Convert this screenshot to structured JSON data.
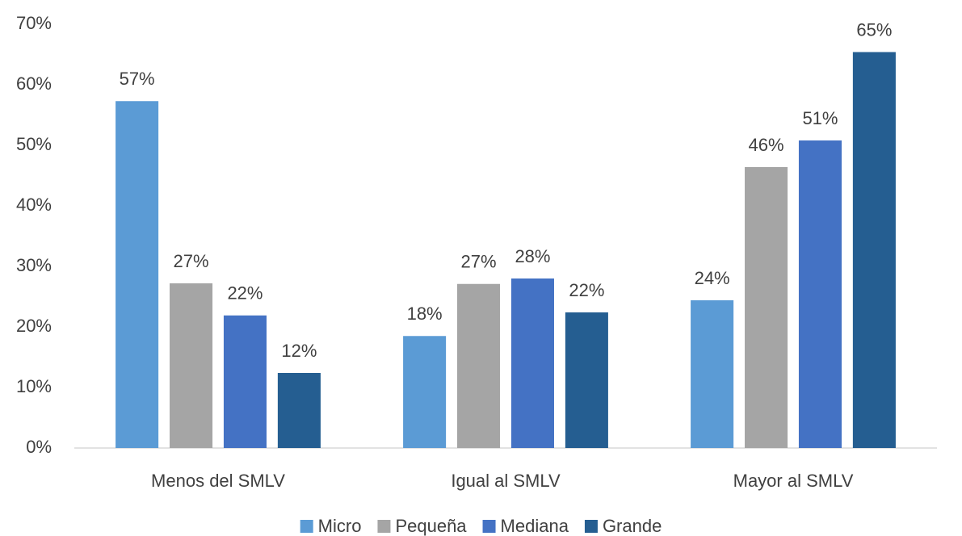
{
  "chart_data": {
    "type": "bar",
    "categories": [
      "Menos del SMLV",
      "Igual al SMLV",
      "Mayor al SMLV"
    ],
    "series": [
      {
        "name": "Micro",
        "color": "#5b9bd5",
        "values": [
          57.3,
          18.5,
          24.4
        ],
        "value_labels": [
          "57%",
          "18%",
          "24%"
        ]
      },
      {
        "name": "Pequeña",
        "color": "#a5a5a5",
        "values": [
          27.2,
          27.1,
          46.4
        ],
        "value_labels": [
          "27%",
          "27%",
          "46%"
        ]
      },
      {
        "name": "Mediana",
        "color": "#4472c4",
        "values": [
          21.9,
          28,
          50.8
        ],
        "value_labels": [
          "22%",
          "28%",
          "51%"
        ]
      },
      {
        "name": "Grande",
        "color": "#255e91",
        "values": [
          12.4,
          22.4,
          65.4
        ],
        "value_labels": [
          "12%",
          "22%",
          "65%"
        ]
      }
    ],
    "ylim": [
      0,
      70
    ],
    "yticks": [
      {
        "value": 0,
        "label": "0%"
      },
      {
        "value": 10,
        "label": "10%"
      },
      {
        "value": 20,
        "label": "20%"
      },
      {
        "value": 30,
        "label": "30%"
      },
      {
        "value": 40,
        "label": "40%"
      },
      {
        "value": 50,
        "label": "50%"
      },
      {
        "value": 60,
        "label": "60%"
      },
      {
        "value": 70,
        "label": "70%"
      }
    ],
    "grid": false,
    "legend": "bottom"
  }
}
